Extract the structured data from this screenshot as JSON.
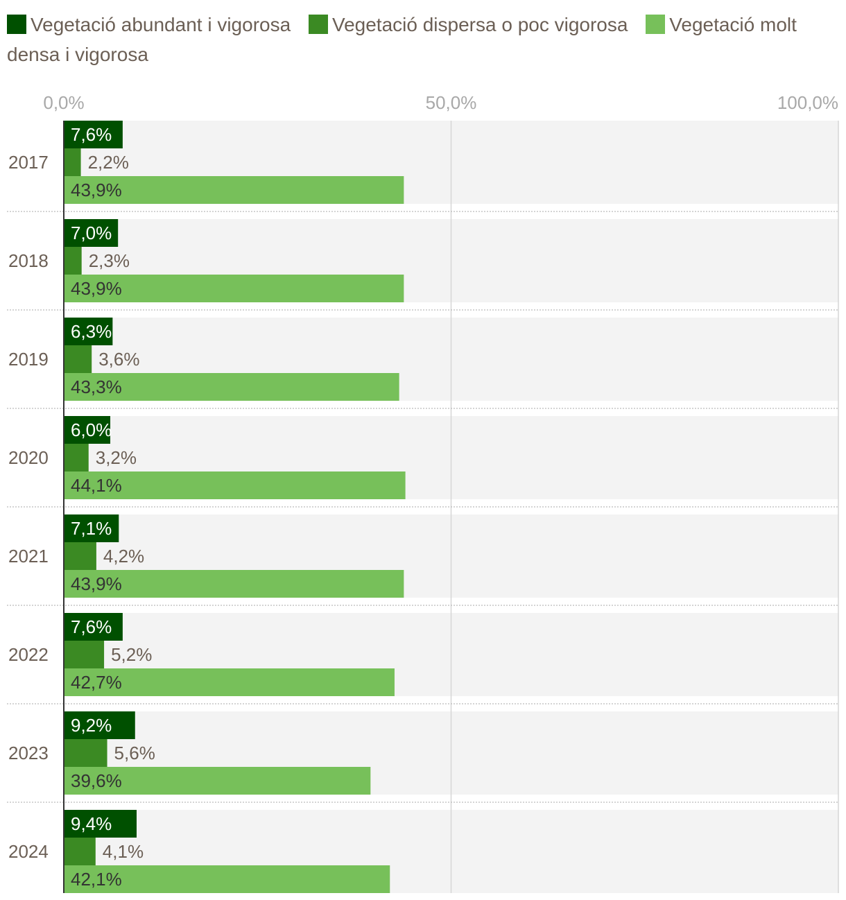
{
  "chart_data": {
    "type": "bar",
    "orientation": "horizontal",
    "categories": [
      "2017",
      "2018",
      "2019",
      "2020",
      "2021",
      "2022",
      "2023",
      "2024"
    ],
    "series": [
      {
        "name": "Vegetació abundant i vigorosa",
        "color": "#005000",
        "values": [
          7.6,
          7.0,
          6.3,
          6.0,
          7.1,
          7.6,
          9.2,
          9.4
        ],
        "labels": [
          "7,6%",
          "7,0%",
          "6,3%",
          "6,0%",
          "7,1%",
          "7,6%",
          "9,2%",
          "9,4%"
        ]
      },
      {
        "name": "Vegetació dispersa o poc vigorosa",
        "color": "#3b8a23",
        "values": [
          2.2,
          2.3,
          3.6,
          3.2,
          4.2,
          5.2,
          5.6,
          4.1
        ],
        "labels": [
          "2,2%",
          "2,3%",
          "3,6%",
          "3,2%",
          "4,2%",
          "5,2%",
          "5,6%",
          "4,1%"
        ]
      },
      {
        "name": "Vegetació molt densa i vigorosa",
        "color": "#77c05a",
        "values": [
          43.9,
          43.9,
          43.3,
          44.1,
          43.9,
          42.7,
          39.6,
          42.1
        ],
        "labels": [
          "43,9%",
          "43,9%",
          "43,3%",
          "44,1%",
          "43,9%",
          "42,7%",
          "39,6%",
          "42,1%"
        ]
      }
    ],
    "xlim": [
      0,
      100
    ],
    "ticks": [
      0,
      50,
      100
    ],
    "tick_labels": [
      "0,0%",
      "50,0%",
      "100,0%"
    ],
    "legend": "top"
  }
}
